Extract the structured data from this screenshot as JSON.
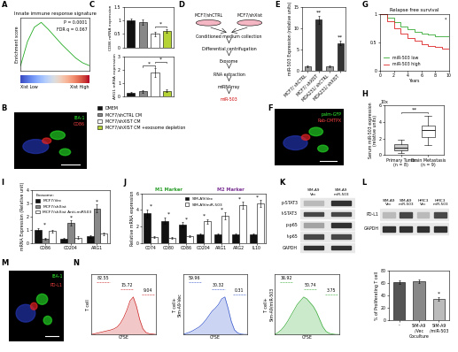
{
  "chart_data": [
    {
      "panel": "A",
      "type": "line",
      "title": "Innate immune response signature",
      "y_label": "Enrichment score",
      "x": [
        0,
        1,
        2,
        3,
        4,
        5,
        6,
        7,
        8,
        9,
        10
      ],
      "values": [
        0,
        0.25,
        0.4,
        0.45,
        0.38,
        0.3,
        0.22,
        0.15,
        0.08,
        0.03,
        0
      ],
      "color": "#22aa22",
      "xlim": [
        0,
        10
      ],
      "ylim": [
        -0.05,
        0.5
      ],
      "tick_labels": false,
      "annotations": [
        "P = 0.0001",
        "FDR q = 0.067"
      ],
      "bar_labels": [
        "Xist Low",
        "Xist High"
      ]
    },
    {
      "panel": "C",
      "type": "bar",
      "legend": "upper left",
      "series": [
        {
          "name": "DMEM",
          "color": "#111111"
        },
        {
          "name": "MCF7/shCTRL CM",
          "color": "#888888"
        },
        {
          "name": "MCF7/shXIST CM",
          "color": "#ffffff"
        },
        {
          "name": "MCF7/shXIST CM +exosome depletion",
          "color": "#b5d334"
        }
      ],
      "subcharts": [
        {
          "y_label": "CD86 mRNA expression",
          "values": [
            1.0,
            0.95,
            0.5,
            0.62
          ],
          "errors": [
            0.08,
            0.1,
            0.08,
            0.06
          ],
          "ylim": [
            0,
            1.5
          ],
          "yticks": [
            0,
            0.5,
            1,
            1.5
          ],
          "annotations": [
            {
              "text": "*",
              "over": [
                2,
                3
              ]
            }
          ]
        },
        {
          "y_label": "ARG1 mRNA expression",
          "values": [
            0.3,
            0.4,
            1.8,
            0.45
          ],
          "errors": [
            0.05,
            0.08,
            0.3,
            0.08
          ],
          "ylim": [
            0,
            3
          ],
          "yticks": [
            0,
            1,
            2,
            3
          ],
          "annotations": [
            {
              "text": "*",
              "over": [
                1,
                2
              ]
            },
            {
              "text": "*",
              "over": [
                2,
                3
              ]
            }
          ]
        }
      ]
    },
    {
      "panel": "E",
      "type": "bar",
      "y_label": "miR-503 Expression (relative units)",
      "categories": [
        "MCF7/ shCTRL",
        "MCF7/ shXIST",
        "MDA231/ shCTRL",
        "MDA231/ shXIST"
      ],
      "values": [
        1,
        12,
        1,
        6.5
      ],
      "errors": [
        0.2,
        1.0,
        0.2,
        0.6
      ],
      "colors": [
        "#999999",
        "#333333",
        "#999999",
        "#333333"
      ],
      "ylim": [
        0,
        15
      ],
      "yticks": [
        0,
        5,
        10,
        15
      ],
      "annotations": [
        {
          "text": "**",
          "index": 1
        },
        {
          "text": "**",
          "index": 3
        }
      ]
    },
    {
      "panel": "G",
      "type": "line",
      "title": "Relapse free survival",
      "x_label": "Years",
      "legend": "lower left",
      "x": [
        0,
        1,
        2,
        3,
        4,
        5,
        6,
        7,
        8,
        9,
        10
      ],
      "series": [
        {
          "name": "miR-503 low",
          "color": "#33aa33",
          "line_style": "steps",
          "values": [
            1,
            0.93,
            0.85,
            0.78,
            0.73,
            0.69,
            0.66,
            0.63,
            0.61,
            0.6,
            0.58
          ]
        },
        {
          "name": "miR-503 high",
          "color": "#dd2222",
          "line_style": "steps",
          "values": [
            1,
            0.88,
            0.75,
            0.65,
            0.57,
            0.52,
            0.47,
            0.44,
            0.41,
            0.39,
            0.37
          ]
        }
      ],
      "xlim": [
        0,
        10
      ],
      "xticks": [
        0,
        2,
        4,
        6,
        8,
        10
      ],
      "ylim": [
        0,
        1
      ],
      "yticks": [
        0,
        0.5,
        1
      ],
      "annotations": [
        "*"
      ]
    },
    {
      "panel": "H",
      "type": "box",
      "y_label": "Serum miR-503 expression\n(relative units)",
      "axis_note": "10x",
      "categories": [
        "Primary Tumor\n(n = 8)",
        "Brain Metastasis\n(n = 9)"
      ],
      "colors": [
        "#cccccc",
        "#ffffff"
      ],
      "boxes": [
        {
          "min": 0.2,
          "q1": 0.5,
          "median": 0.9,
          "q3": 1.3,
          "max": 1.8
        },
        {
          "min": 1.2,
          "q1": 2.2,
          "median": 3.0,
          "q3": 3.6,
          "max": 4.8
        }
      ],
      "ylim": [
        0,
        6
      ],
      "yticks": [
        0,
        2,
        4,
        6
      ],
      "annotations": [
        {
          "text": "**",
          "over": [
            0,
            1
          ]
        }
      ]
    },
    {
      "panel": "I",
      "type": "bar",
      "y_label": "mRNA Expression (Relative unit)",
      "legend": "upper left",
      "legend_title": "Exosome:",
      "categories": [
        "CD86",
        "CD204",
        "ARG1"
      ],
      "series": [
        {
          "name": "MCF7/Vec",
          "color": "#111111",
          "values": [
            1.0,
            0.3,
            0.5
          ],
          "errors": [
            0.1,
            0.05,
            0.1
          ]
        },
        {
          "name": "MCF7/shXist",
          "color": "#888888",
          "values": [
            0.3,
            1.5,
            2.6
          ],
          "errors": [
            0.05,
            0.2,
            0.3
          ]
        },
        {
          "name": "MCF7/shXist Anti-miR503",
          "color": "#ffffff",
          "values": [
            0.9,
            0.4,
            0.7
          ],
          "errors": [
            0.1,
            0.08,
            0.1
          ]
        }
      ],
      "ylim": [
        0,
        4
      ],
      "yticks": [
        0,
        1,
        2,
        3,
        4
      ],
      "annotations": [
        {
          "text": "*",
          "index": 0
        },
        {
          "text": "*",
          "index": 1
        },
        {
          "text": "*",
          "index": 2
        }
      ]
    },
    {
      "panel": "J",
      "type": "bar",
      "y_label": "Relative mRNA expression",
      "legend": "upper center",
      "categories": [
        "CD74",
        "CD80",
        "CD86",
        "CD204",
        "ARG1",
        "ARG2",
        "IL10"
      ],
      "group_labels": [
        {
          "text": "M1 Marker",
          "color": "#2ca02c",
          "categories": [
            0,
            2
          ]
        },
        {
          "text": "M2 Marker",
          "color": "#7b3294",
          "categories": [
            3,
            6
          ]
        }
      ],
      "series": [
        {
          "name": "SIM-A9/Vec",
          "color": "#111111",
          "values": [
            3.6,
            2.7,
            2.2,
            1.0,
            1.0,
            1.0,
            1.0
          ],
          "errors": [
            0.5,
            0.4,
            0.3,
            0.1,
            0.1,
            0.1,
            0.1
          ]
        },
        {
          "name": "SIM-A9/miR-503",
          "color": "#ffffff",
          "values": [
            0.7,
            0.6,
            0.8,
            2.6,
            3.3,
            4.6,
            4.8
          ],
          "errors": [
            0.1,
            0.1,
            0.1,
            0.3,
            0.4,
            0.4,
            0.4
          ]
        }
      ],
      "ylim": [
        0,
        6
      ],
      "yticks": [
        0,
        2,
        4,
        6
      ],
      "annotations": [
        {
          "text": "*",
          "index": 0
        },
        {
          "text": "*",
          "index": 1
        },
        {
          "text": "*",
          "index": 2
        },
        {
          "text": "*",
          "index": 3
        },
        {
          "text": "*",
          "index": 4
        },
        {
          "text": "*",
          "index": 5
        },
        {
          "text": "*",
          "index": 6
        }
      ]
    },
    {
      "panel": "N",
      "type": "area",
      "x_label": "CFSE",
      "x": [
        0,
        1,
        2,
        3,
        4,
        5,
        6,
        7,
        8,
        9,
        10,
        11,
        12,
        13,
        14,
        15,
        16,
        17,
        18,
        19,
        20
      ],
      "xlim": [
        0,
        20
      ],
      "ylim": [
        0,
        1.6
      ],
      "tick_labels": false,
      "subcharts": [
        {
          "y_label": "T cell",
          "color": "#cc2222",
          "percentages": [
            82.55,
            15.72,
            9.04
          ],
          "values": [
            0,
            0.02,
            0.04,
            0.06,
            0.08,
            0.1,
            0.12,
            0.15,
            0.2,
            0.3,
            0.45,
            0.65,
            0.9,
            1.0,
            0.75,
            0.4,
            0.15,
            0.05,
            0.02,
            0.01,
            0
          ]
        },
        {
          "y_label": "T cell+\nSim-A9-Vec",
          "color": "#3355cc",
          "percentages": [
            59.96,
            30.32,
            0.31
          ],
          "values": [
            0,
            0.03,
            0.06,
            0.1,
            0.15,
            0.2,
            0.28,
            0.38,
            0.5,
            0.62,
            0.7,
            0.8,
            0.95,
            1.0,
            0.7,
            0.35,
            0.12,
            0.04,
            0.01,
            0,
            0
          ]
        },
        {
          "y_label": "T cell+\nSim-A9/miR-503",
          "color": "#33aa33",
          "percentages": [
            36.92,
            50.74,
            3.75
          ],
          "values": [
            0,
            0.05,
            0.12,
            0.22,
            0.35,
            0.5,
            0.65,
            0.8,
            0.9,
            1.0,
            0.95,
            0.85,
            0.75,
            0.6,
            0.4,
            0.2,
            0.08,
            0.03,
            0.01,
            0,
            0
          ]
        }
      ]
    },
    {
      "panel": "N",
      "type": "bar",
      "y_label": "% of Proliferating T cell",
      "x_label": "Coculture",
      "categories": [
        "-",
        "SIM-A9\n/Vec",
        "SIM-A9\n/miR-503"
      ],
      "values": [
        62,
        63,
        35
      ],
      "errors": [
        3,
        3,
        3
      ],
      "colors": [
        "#555555",
        "#888888",
        "#bbbbbb"
      ],
      "ylim": [
        0,
        80
      ],
      "yticks": [
        0,
        20,
        40,
        60,
        80
      ],
      "annotations": [
        {
          "text": "*",
          "index": 2
        }
      ]
    }
  ],
  "diagram": {
    "panel": "D",
    "sources": [
      "MCF7/shCTRL",
      "MCF7/shXist"
    ],
    "steps": [
      "Conditioned medium collection",
      "Differential centrifugation",
      "Exosome",
      "RNA extraction",
      "miRNArray",
      "miR-503"
    ]
  },
  "images": [
    {
      "panel": "B",
      "labels": [
        {
          "text": "IBA-1",
          "color": "#33ff33"
        },
        {
          "text": "CD86",
          "color": "#ff4444"
        }
      ]
    },
    {
      "panel": "F",
      "labels": [
        {
          "text": "palm-GFP",
          "color": "#33ff33"
        },
        {
          "text": "Rab-CMTPX",
          "color": "#ff4444"
        }
      ]
    },
    {
      "panel": "M",
      "labels": [
        {
          "text": "IBA-1",
          "color": "#33ff33"
        },
        {
          "text": "PD-L1",
          "color": "#ff4444"
        }
      ]
    }
  ],
  "blots": [
    {
      "panel": "K",
      "lanes": [
        "SIM-A9\nVec",
        "SIM-A9\nmiR-503"
      ],
      "rows": [
        {
          "label": "p-STAT3",
          "bands": [
            0.3,
            0.9
          ]
        },
        {
          "label": "t-STAT3",
          "bands": [
            0.8,
            0.8
          ]
        },
        {
          "label": "p-p65",
          "bands": [
            0.4,
            0.9
          ]
        },
        {
          "label": "t-p65",
          "bands": [
            0.8,
            0.8
          ]
        },
        {
          "label": "GAPDH",
          "bands": [
            0.9,
            0.9
          ]
        }
      ]
    },
    {
      "panel": "L",
      "lanes": [
        "SIM-A9\nVec",
        "SIM-A9\nmiR-503",
        "HMC3\nVec",
        "HMC3\nmiR-503"
      ],
      "rows": [
        {
          "label": "PD-L1",
          "bands": [
            0.3,
            0.8,
            0.3,
            0.8
          ]
        },
        {
          "label": "GAPDH",
          "bands": [
            0.9,
            0.9,
            0.9,
            0.9
          ]
        }
      ]
    }
  ]
}
